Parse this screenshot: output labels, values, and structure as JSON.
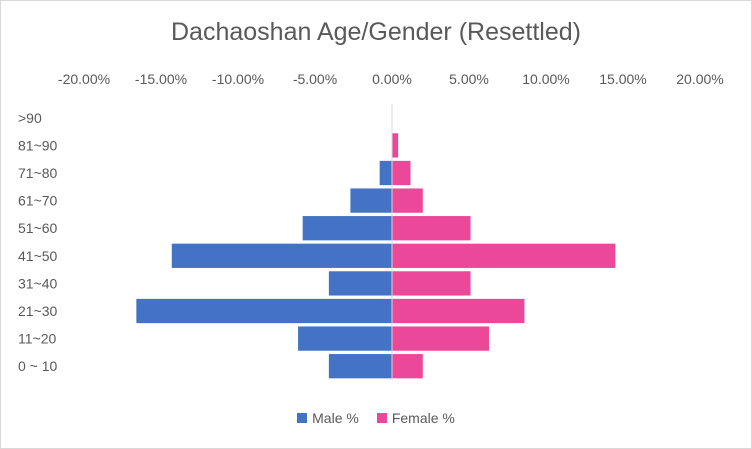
{
  "chart_data": {
    "type": "bar",
    "orientation": "horizontal",
    "title": "Dachaoshan Age/Gender (Resettled)",
    "categories": [
      "0 ~ 10",
      "11~20",
      "21~30",
      "31~40",
      "41~50",
      "51~60",
      "61~70",
      "71~80",
      "81~90",
      ">90"
    ],
    "series": [
      {
        "name": "Male %",
        "color": "#4472C4",
        "values": [
          -4.1,
          -6.1,
          -16.6,
          -4.1,
          -14.3,
          -5.8,
          -2.7,
          -0.8,
          0,
          0
        ]
      },
      {
        "name": "Female %",
        "color": "#EC4899",
        "values": [
          2.0,
          6.3,
          8.6,
          5.1,
          14.5,
          5.1,
          2.0,
          1.2,
          0.4,
          0
        ]
      }
    ],
    "xlim": [
      -20,
      20
    ],
    "xticks": [
      "-20.00%",
      "-15.00%",
      "-10.00%",
      "-5.00%",
      "0.00%",
      "5.00%",
      "10.00%",
      "15.00%",
      "20.00%"
    ],
    "xtick_values": [
      -20,
      -15,
      -10,
      -5,
      0,
      5,
      10,
      15,
      20
    ],
    "grid": false,
    "legend_position": "bottom"
  }
}
